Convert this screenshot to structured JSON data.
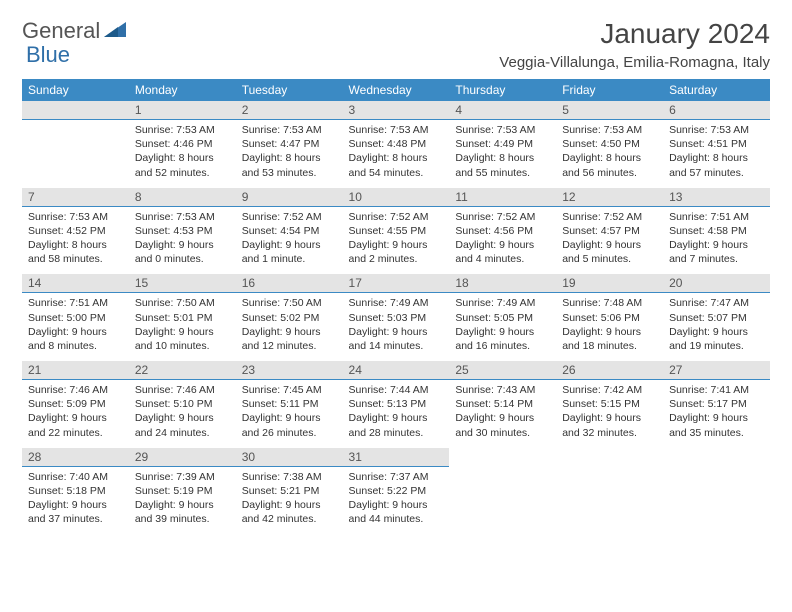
{
  "logo": {
    "part1": "General",
    "part2": "Blue"
  },
  "title": "January 2024",
  "location": "Veggia-Villalunga, Emilia-Romagna, Italy",
  "colors": {
    "header_bg": "#3b8ac4",
    "header_text": "#ffffff",
    "daynum_bg": "#e4e4e4",
    "daynum_border": "#3b8ac4",
    "body_text": "#333333",
    "logo_gray": "#555555",
    "logo_blue": "#2f6fa8"
  },
  "day_headers": [
    "Sunday",
    "Monday",
    "Tuesday",
    "Wednesday",
    "Thursday",
    "Friday",
    "Saturday"
  ],
  "weeks": [
    [
      {
        "num": "",
        "sunrise": "",
        "sunset": "",
        "daylight": ""
      },
      {
        "num": "1",
        "sunrise": "Sunrise: 7:53 AM",
        "sunset": "Sunset: 4:46 PM",
        "daylight": "Daylight: 8 hours and 52 minutes."
      },
      {
        "num": "2",
        "sunrise": "Sunrise: 7:53 AM",
        "sunset": "Sunset: 4:47 PM",
        "daylight": "Daylight: 8 hours and 53 minutes."
      },
      {
        "num": "3",
        "sunrise": "Sunrise: 7:53 AM",
        "sunset": "Sunset: 4:48 PM",
        "daylight": "Daylight: 8 hours and 54 minutes."
      },
      {
        "num": "4",
        "sunrise": "Sunrise: 7:53 AM",
        "sunset": "Sunset: 4:49 PM",
        "daylight": "Daylight: 8 hours and 55 minutes."
      },
      {
        "num": "5",
        "sunrise": "Sunrise: 7:53 AM",
        "sunset": "Sunset: 4:50 PM",
        "daylight": "Daylight: 8 hours and 56 minutes."
      },
      {
        "num": "6",
        "sunrise": "Sunrise: 7:53 AM",
        "sunset": "Sunset: 4:51 PM",
        "daylight": "Daylight: 8 hours and 57 minutes."
      }
    ],
    [
      {
        "num": "7",
        "sunrise": "Sunrise: 7:53 AM",
        "sunset": "Sunset: 4:52 PM",
        "daylight": "Daylight: 8 hours and 58 minutes."
      },
      {
        "num": "8",
        "sunrise": "Sunrise: 7:53 AM",
        "sunset": "Sunset: 4:53 PM",
        "daylight": "Daylight: 9 hours and 0 minutes."
      },
      {
        "num": "9",
        "sunrise": "Sunrise: 7:52 AM",
        "sunset": "Sunset: 4:54 PM",
        "daylight": "Daylight: 9 hours and 1 minute."
      },
      {
        "num": "10",
        "sunrise": "Sunrise: 7:52 AM",
        "sunset": "Sunset: 4:55 PM",
        "daylight": "Daylight: 9 hours and 2 minutes."
      },
      {
        "num": "11",
        "sunrise": "Sunrise: 7:52 AM",
        "sunset": "Sunset: 4:56 PM",
        "daylight": "Daylight: 9 hours and 4 minutes."
      },
      {
        "num": "12",
        "sunrise": "Sunrise: 7:52 AM",
        "sunset": "Sunset: 4:57 PM",
        "daylight": "Daylight: 9 hours and 5 minutes."
      },
      {
        "num": "13",
        "sunrise": "Sunrise: 7:51 AM",
        "sunset": "Sunset: 4:58 PM",
        "daylight": "Daylight: 9 hours and 7 minutes."
      }
    ],
    [
      {
        "num": "14",
        "sunrise": "Sunrise: 7:51 AM",
        "sunset": "Sunset: 5:00 PM",
        "daylight": "Daylight: 9 hours and 8 minutes."
      },
      {
        "num": "15",
        "sunrise": "Sunrise: 7:50 AM",
        "sunset": "Sunset: 5:01 PM",
        "daylight": "Daylight: 9 hours and 10 minutes."
      },
      {
        "num": "16",
        "sunrise": "Sunrise: 7:50 AM",
        "sunset": "Sunset: 5:02 PM",
        "daylight": "Daylight: 9 hours and 12 minutes."
      },
      {
        "num": "17",
        "sunrise": "Sunrise: 7:49 AM",
        "sunset": "Sunset: 5:03 PM",
        "daylight": "Daylight: 9 hours and 14 minutes."
      },
      {
        "num": "18",
        "sunrise": "Sunrise: 7:49 AM",
        "sunset": "Sunset: 5:05 PM",
        "daylight": "Daylight: 9 hours and 16 minutes."
      },
      {
        "num": "19",
        "sunrise": "Sunrise: 7:48 AM",
        "sunset": "Sunset: 5:06 PM",
        "daylight": "Daylight: 9 hours and 18 minutes."
      },
      {
        "num": "20",
        "sunrise": "Sunrise: 7:47 AM",
        "sunset": "Sunset: 5:07 PM",
        "daylight": "Daylight: 9 hours and 19 minutes."
      }
    ],
    [
      {
        "num": "21",
        "sunrise": "Sunrise: 7:46 AM",
        "sunset": "Sunset: 5:09 PM",
        "daylight": "Daylight: 9 hours and 22 minutes."
      },
      {
        "num": "22",
        "sunrise": "Sunrise: 7:46 AM",
        "sunset": "Sunset: 5:10 PM",
        "daylight": "Daylight: 9 hours and 24 minutes."
      },
      {
        "num": "23",
        "sunrise": "Sunrise: 7:45 AM",
        "sunset": "Sunset: 5:11 PM",
        "daylight": "Daylight: 9 hours and 26 minutes."
      },
      {
        "num": "24",
        "sunrise": "Sunrise: 7:44 AM",
        "sunset": "Sunset: 5:13 PM",
        "daylight": "Daylight: 9 hours and 28 minutes."
      },
      {
        "num": "25",
        "sunrise": "Sunrise: 7:43 AM",
        "sunset": "Sunset: 5:14 PM",
        "daylight": "Daylight: 9 hours and 30 minutes."
      },
      {
        "num": "26",
        "sunrise": "Sunrise: 7:42 AM",
        "sunset": "Sunset: 5:15 PM",
        "daylight": "Daylight: 9 hours and 32 minutes."
      },
      {
        "num": "27",
        "sunrise": "Sunrise: 7:41 AM",
        "sunset": "Sunset: 5:17 PM",
        "daylight": "Daylight: 9 hours and 35 minutes."
      }
    ],
    [
      {
        "num": "28",
        "sunrise": "Sunrise: 7:40 AM",
        "sunset": "Sunset: 5:18 PM",
        "daylight": "Daylight: 9 hours and 37 minutes."
      },
      {
        "num": "29",
        "sunrise": "Sunrise: 7:39 AM",
        "sunset": "Sunset: 5:19 PM",
        "daylight": "Daylight: 9 hours and 39 minutes."
      },
      {
        "num": "30",
        "sunrise": "Sunrise: 7:38 AM",
        "sunset": "Sunset: 5:21 PM",
        "daylight": "Daylight: 9 hours and 42 minutes."
      },
      {
        "num": "31",
        "sunrise": "Sunrise: 7:37 AM",
        "sunset": "Sunset: 5:22 PM",
        "daylight": "Daylight: 9 hours and 44 minutes."
      },
      {
        "num": "",
        "sunrise": "",
        "sunset": "",
        "daylight": ""
      },
      {
        "num": "",
        "sunrise": "",
        "sunset": "",
        "daylight": ""
      },
      {
        "num": "",
        "sunrise": "",
        "sunset": "",
        "daylight": ""
      }
    ]
  ]
}
